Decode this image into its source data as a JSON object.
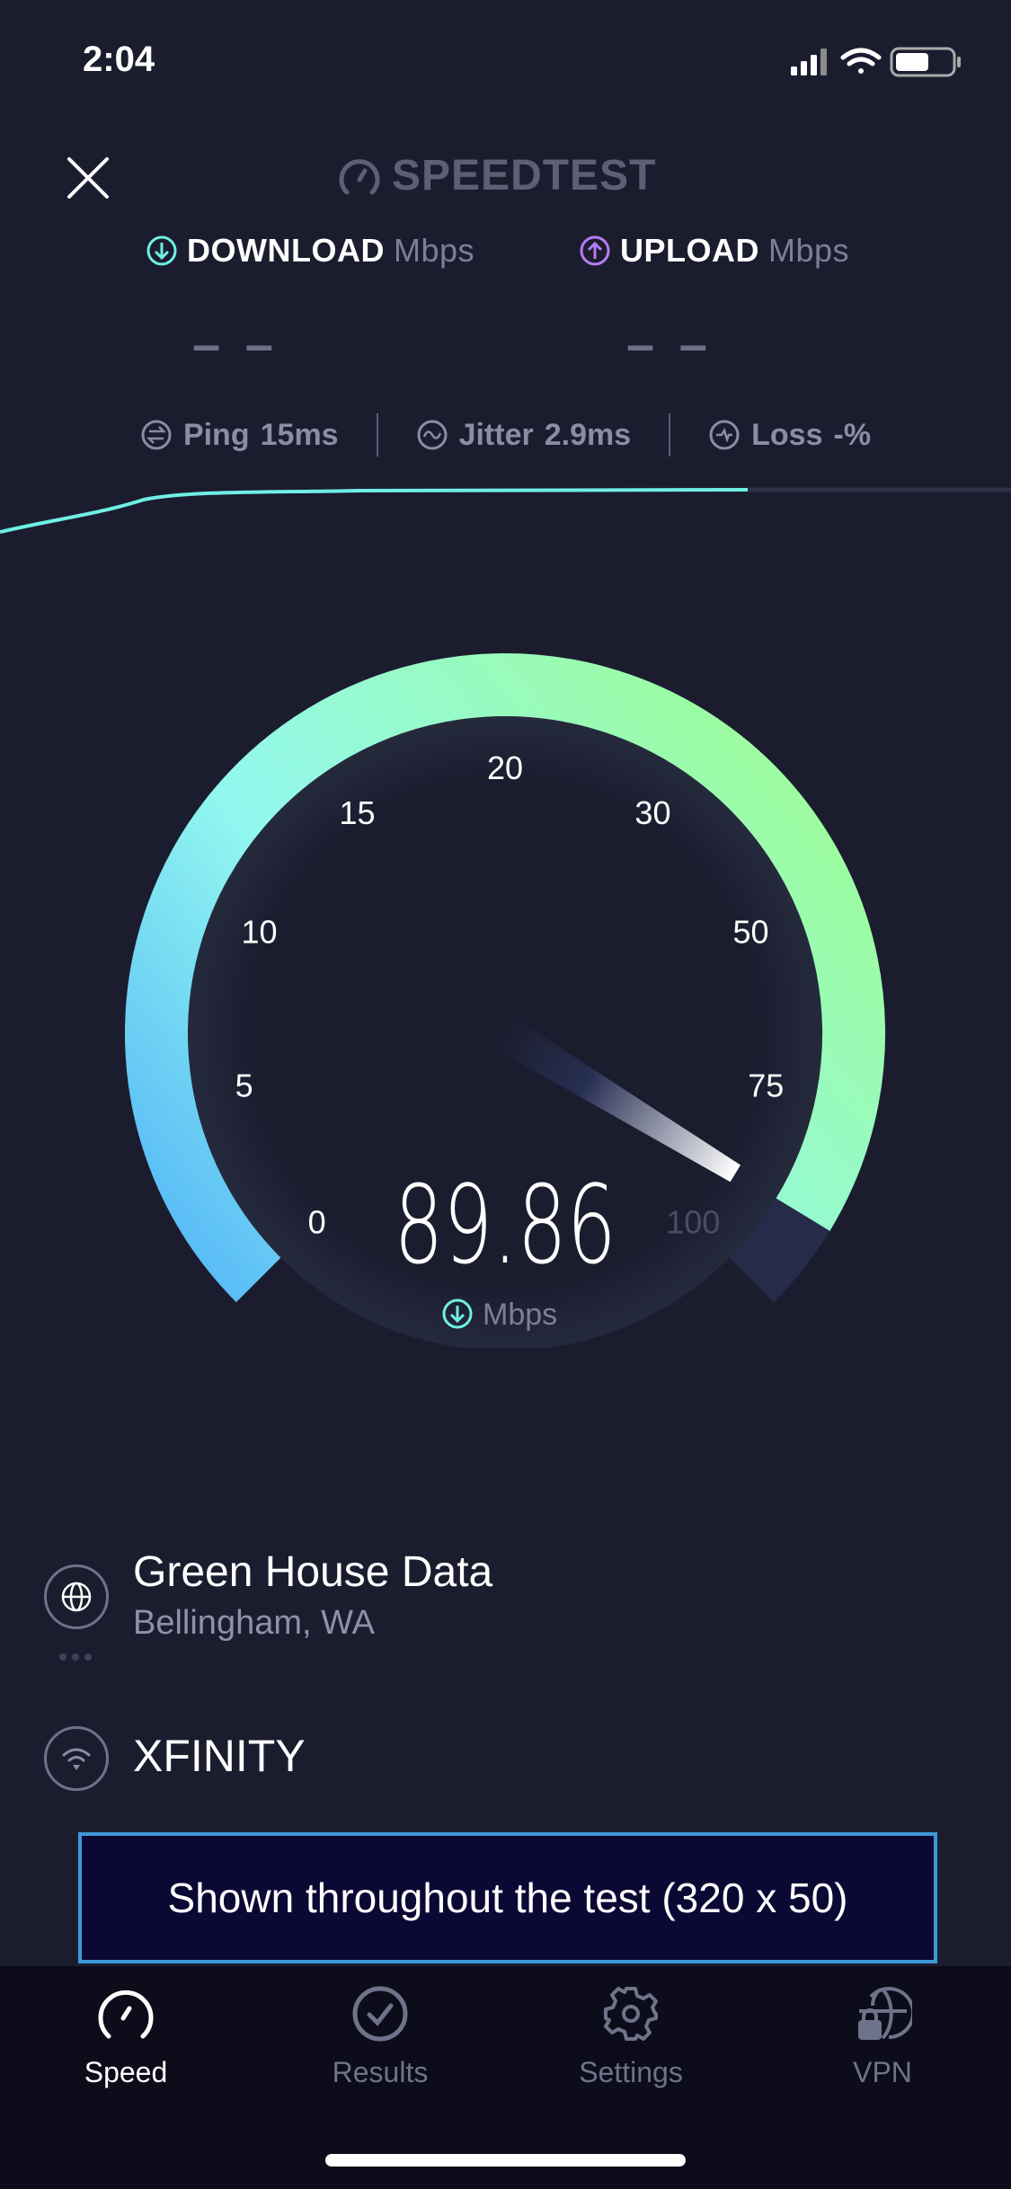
{
  "status_bar": {
    "time": "2:04",
    "icons": [
      "cellular-signal-icon",
      "wifi-icon",
      "battery-icon"
    ]
  },
  "header": {
    "brand": "SPEEDTEST",
    "close_icon": "close-icon"
  },
  "metrics": {
    "download": {
      "label": "DOWNLOAD",
      "unit": "Mbps",
      "value": "– –",
      "color": "#6ff0e4"
    },
    "upload": {
      "label": "UPLOAD",
      "unit": "Mbps",
      "value": "– –",
      "color": "#b57cf5"
    }
  },
  "stats": {
    "ping": {
      "label": "Ping",
      "value": "15",
      "unit": "ms"
    },
    "jitter": {
      "label": "Jitter",
      "value": "2.9",
      "unit": "ms"
    },
    "loss": {
      "label": "Loss",
      "value": "-",
      "unit": "%"
    }
  },
  "gauge": {
    "ticks": [
      "0",
      "5",
      "10",
      "15",
      "20",
      "30",
      "50",
      "75",
      "100"
    ],
    "value": 89.86,
    "value_text": "89.86",
    "unit": "Mbps",
    "colors": {
      "start": "#52b4f8",
      "mid": "#92f8ef",
      "end": "#9dfca0",
      "remaining": "#252b48"
    }
  },
  "server": {
    "name": "Green House Data",
    "location": "Bellingham, WA"
  },
  "connection": {
    "isp": "XFINITY"
  },
  "ad": {
    "text": "Shown throughout the test (320 x 50)"
  },
  "tabs": [
    {
      "label": "Speed",
      "icon": "speedometer-icon",
      "active": true
    },
    {
      "label": "Results",
      "icon": "check-circle-icon",
      "active": false
    },
    {
      "label": "Settings",
      "icon": "gear-icon",
      "active": false
    },
    {
      "label": "VPN",
      "icon": "globe-lock-icon",
      "active": false
    }
  ]
}
